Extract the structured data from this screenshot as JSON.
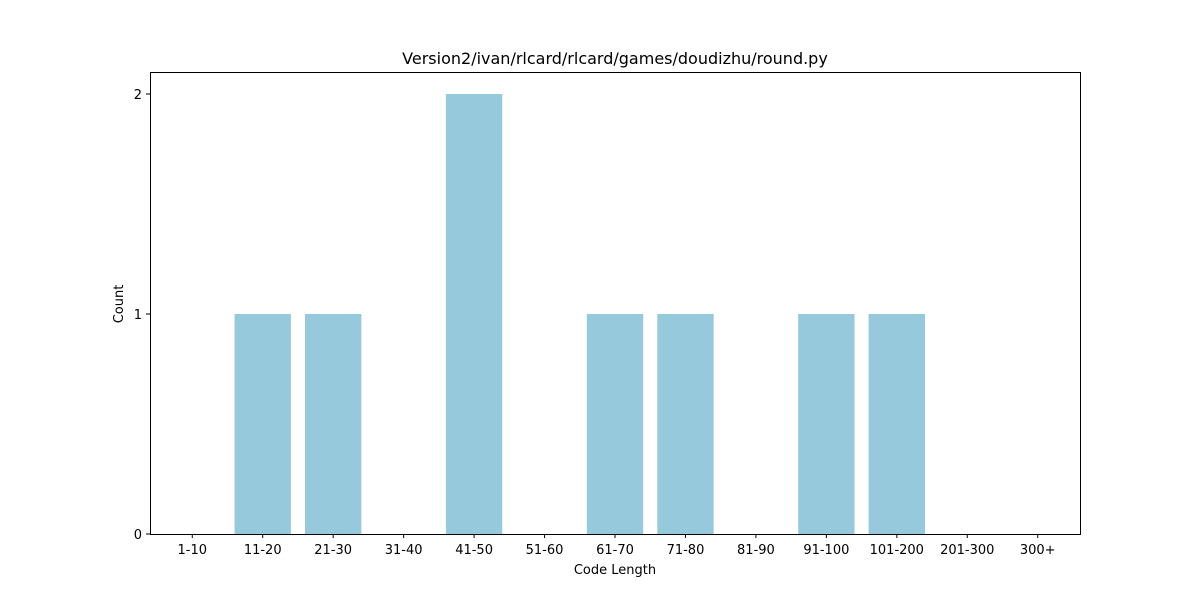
{
  "chart_data": {
    "type": "bar",
    "title": "Version2/ivan/rlcard/rlcard/games/doudizhu/round.py",
    "xlabel": "Code Length",
    "ylabel": "Count",
    "categories": [
      "1-10",
      "11-20",
      "21-30",
      "31-40",
      "41-50",
      "51-60",
      "61-70",
      "71-80",
      "81-90",
      "91-100",
      "101-200",
      "201-300",
      "300+"
    ],
    "values": [
      0,
      1,
      1,
      0,
      2,
      0,
      1,
      1,
      0,
      1,
      1,
      0,
      0
    ],
    "yticks": [
      0,
      1,
      2
    ],
    "ylim": [
      0,
      2.1
    ],
    "bar_color": "#96c9dc",
    "grid": false,
    "legend": "none"
  }
}
